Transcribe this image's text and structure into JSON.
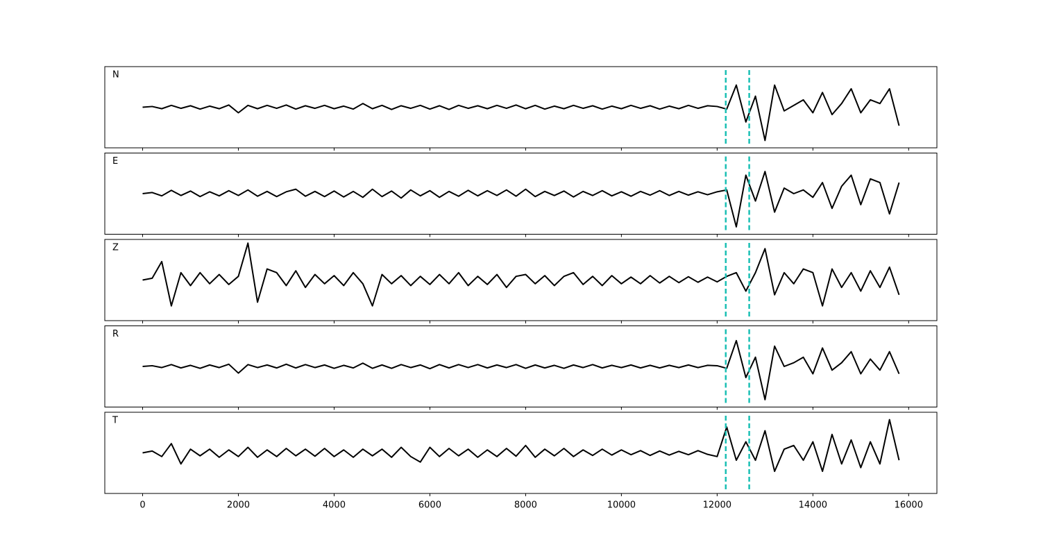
{
  "chart_data": {
    "type": "line",
    "x": [
      0,
      200,
      400,
      600,
      800,
      1000,
      1200,
      1400,
      1600,
      1800,
      2000,
      2200,
      2400,
      2600,
      2800,
      3000,
      3200,
      3400,
      3600,
      3800,
      4000,
      4200,
      4400,
      4600,
      4800,
      5000,
      5200,
      5400,
      5600,
      5800,
      6000,
      6200,
      6400,
      6600,
      6800,
      7000,
      7200,
      7400,
      7600,
      7800,
      8000,
      8200,
      8400,
      8600,
      8800,
      9000,
      9200,
      9400,
      9600,
      9800,
      10000,
      10200,
      10400,
      10600,
      10800,
      11000,
      11200,
      11400,
      11600,
      11800,
      12000,
      12200,
      12400,
      12600,
      12800,
      13000,
      13200,
      13400,
      13600,
      13800,
      14000,
      14200,
      14400,
      14600,
      14800,
      15000,
      15200,
      15400,
      15600,
      15800
    ],
    "series": [
      {
        "name": "N",
        "color": "#000000",
        "values": [
          0,
          0.02,
          -0.04,
          0.05,
          -0.03,
          0.04,
          -0.05,
          0.03,
          -0.04,
          0.06,
          -0.15,
          0.05,
          -0.04,
          0.05,
          -0.03,
          0.06,
          -0.05,
          0.04,
          -0.03,
          0.05,
          -0.04,
          0.03,
          -0.05,
          0.1,
          -0.04,
          0.05,
          -0.06,
          0.04,
          -0.03,
          0.05,
          -0.05,
          0.04,
          -0.06,
          0.05,
          -0.03,
          0.04,
          -0.04,
          0.05,
          -0.03,
          0.06,
          -0.04,
          0.05,
          -0.05,
          0.03,
          -0.04,
          0.05,
          -0.03,
          0.04,
          -0.05,
          0.03,
          -0.04,
          0.05,
          -0.03,
          0.04,
          -0.05,
          0.03,
          -0.04,
          0.05,
          -0.03,
          0.04,
          0.02,
          -0.05,
          0.6,
          -0.4,
          0.3,
          -0.9,
          0.6,
          -0.1,
          0.05,
          0.2,
          -0.15,
          0.4,
          -0.2,
          0.1,
          0.5,
          -0.15,
          0.2,
          0.1,
          0.5,
          -0.5
        ]
      },
      {
        "name": "E",
        "color": "#000000",
        "values": [
          0,
          0.03,
          -0.06,
          0.09,
          -0.05,
          0.07,
          -0.08,
          0.05,
          -0.06,
          0.08,
          -0.05,
          0.1,
          -0.07,
          0.06,
          -0.08,
          0.05,
          0.12,
          -0.07,
          0.06,
          -0.08,
          0.07,
          -0.09,
          0.06,
          -0.1,
          0.12,
          -0.08,
          0.07,
          -0.12,
          0.1,
          -0.06,
          0.08,
          -0.1,
          0.06,
          -0.07,
          0.09,
          -0.06,
          0.08,
          -0.05,
          0.1,
          -0.07,
          0.12,
          -0.08,
          0.06,
          -0.05,
          0.07,
          -0.09,
          0.06,
          -0.05,
          0.08,
          -0.06,
          0.05,
          -0.07,
          0.06,
          -0.04,
          0.08,
          -0.05,
          0.06,
          -0.04,
          0.05,
          -0.03,
          0.05,
          0.1,
          -0.9,
          0.5,
          -0.2,
          0.6,
          -0.5,
          0.15,
          0,
          0.1,
          -0.1,
          0.3,
          -0.4,
          0.2,
          0.5,
          -0.3,
          0.4,
          0.3,
          -0.55,
          0.3
        ]
      },
      {
        "name": "Z",
        "color": "#000000",
        "values": [
          0,
          0.05,
          0.5,
          -0.7,
          0.2,
          -0.15,
          0.2,
          -0.1,
          0.15,
          -0.12,
          0.1,
          1.0,
          -0.6,
          0.3,
          0.2,
          -0.15,
          0.25,
          -0.2,
          0.15,
          -0.1,
          0.12,
          -0.15,
          0.2,
          -0.1,
          -0.7,
          0.15,
          -0.1,
          0.12,
          -0.15,
          0.1,
          -0.12,
          0.15,
          -0.1,
          0.2,
          -0.15,
          0.1,
          -0.12,
          0.15,
          -0.2,
          0.1,
          0.15,
          -0.1,
          0.12,
          -0.15,
          0.1,
          0.2,
          -0.12,
          0.1,
          -0.15,
          0.12,
          -0.1,
          0.08,
          -0.1,
          0.12,
          -0.08,
          0.1,
          -0.07,
          0.09,
          -0.06,
          0.08,
          -0.05,
          0.1,
          0.2,
          -0.3,
          0.2,
          0.85,
          -0.4,
          0.2,
          -0.1,
          0.3,
          0.2,
          -0.7,
          0.3,
          -0.2,
          0.2,
          -0.3,
          0.25,
          -0.2,
          0.35,
          -0.4
        ]
      },
      {
        "name": "R",
        "color": "#000000",
        "values": [
          0,
          0.02,
          -0.03,
          0.05,
          -0.04,
          0.03,
          -0.05,
          0.04,
          -0.03,
          0.06,
          -0.18,
          0.05,
          -0.03,
          0.04,
          -0.04,
          0.06,
          -0.04,
          0.05,
          -0.03,
          0.04,
          -0.05,
          0.03,
          -0.04,
          0.09,
          -0.05,
          0.04,
          -0.05,
          0.05,
          -0.03,
          0.04,
          -0.06,
          0.05,
          -0.04,
          0.05,
          -0.03,
          0.05,
          -0.04,
          0.04,
          -0.03,
          0.05,
          -0.05,
          0.04,
          -0.04,
          0.03,
          -0.05,
          0.04,
          -0.03,
          0.05,
          -0.04,
          0.03,
          -0.03,
          0.04,
          -0.04,
          0.03,
          -0.04,
          0.03,
          -0.03,
          0.04,
          -0.03,
          0.03,
          0.02,
          -0.05,
          0.7,
          -0.3,
          0.25,
          -0.9,
          0.55,
          0,
          0.1,
          0.25,
          -0.2,
          0.5,
          -0.1,
          0.1,
          0.4,
          -0.2,
          0.2,
          -0.1,
          0.4,
          -0.2
        ]
      },
      {
        "name": "T",
        "color": "#000000",
        "values": [
          0,
          0.05,
          -0.1,
          0.25,
          -0.3,
          0.1,
          -0.08,
          0.1,
          -0.12,
          0.08,
          -0.1,
          0.15,
          -0.12,
          0.08,
          -0.1,
          0.12,
          -0.08,
          0.1,
          -0.09,
          0.12,
          -0.1,
          0.08,
          -0.12,
          0.1,
          -0.08,
          0.1,
          -0.12,
          0.15,
          -0.1,
          -0.25,
          0.15,
          -0.1,
          0.12,
          -0.08,
          0.1,
          -0.12,
          0.08,
          -0.1,
          0.12,
          -0.09,
          0.2,
          -0.12,
          0.1,
          -0.08,
          0.12,
          -0.1,
          0.08,
          -0.07,
          0.1,
          -0.06,
          0.08,
          -0.05,
          0.06,
          -0.07,
          0.05,
          -0.06,
          0.04,
          -0.05,
          0.06,
          -0.04,
          -0.1,
          0.7,
          -0.2,
          0.3,
          -0.2,
          0.6,
          -0.5,
          0.1,
          0.2,
          -0.2,
          0.3,
          -0.5,
          0.5,
          -0.3,
          0.35,
          -0.4,
          0.3,
          -0.3,
          0.9,
          -0.2
        ]
      }
    ],
    "vlines": [
      12180,
      12670
    ],
    "vline_color": "#1abfb4",
    "xlim": [
      -790,
      16590
    ],
    "xticks": [
      0,
      2000,
      4000,
      6000,
      8000,
      10000,
      12000,
      14000,
      16000
    ],
    "ylim": [
      -1.1,
      1.1
    ]
  }
}
